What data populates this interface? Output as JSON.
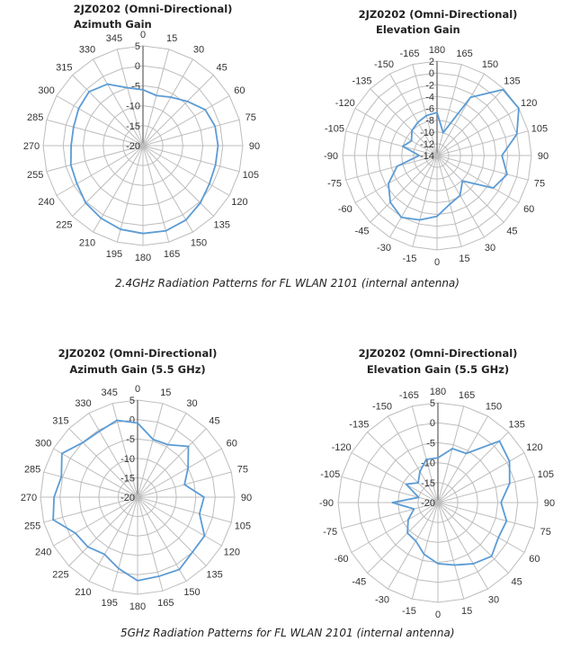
{
  "captions": [
    "2.4GHz Radiation Patterns for FL WLAN 2101 (internal antenna)",
    "5GHz Radiation Patterns for FL WLAN 2101 (internal antenna)"
  ],
  "colors": {
    "series": "#5b9bd5",
    "grid": "#bdbdbd",
    "axis": "#7f7f7f"
  },
  "chart_data": [
    {
      "type": "polar-line",
      "title": "2JZ0202 (Omni-Directional)",
      "subtitle": "Azimuth Gain",
      "orientation": "azimuth",
      "angle_labels": [
        "0",
        "15",
        "30",
        "45",
        "60",
        "75",
        "90",
        "105",
        "120",
        "135",
        "150",
        "165",
        "180",
        "195",
        "210",
        "225",
        "240",
        "255",
        "270",
        "285",
        "300",
        "315",
        "330",
        "345"
      ],
      "radial_range": [
        -20,
        5
      ],
      "radial_ticks": [
        "-20",
        "-15",
        "-10",
        "-5",
        "0",
        "5"
      ],
      "values": [
        -6,
        -7,
        -6,
        -4.3,
        -2,
        -1.3,
        -1.2,
        -1.2,
        -0.8,
        0.3,
        1.5,
        2.1,
        2,
        1.7,
        1,
        0.3,
        -0.9,
        -1.3,
        -2,
        -2,
        -1.4,
        -0.9,
        -2.2,
        -5
      ]
    },
    {
      "type": "polar-line",
      "title": "2JZ0202 (Omni-Directional)",
      "subtitle": "Elevation Gain",
      "orientation": "elevation",
      "angle_labels": [
        "180",
        "165",
        "150",
        "135",
        "120",
        "105",
        "90",
        "75",
        "60",
        "45",
        "30",
        "15",
        "0",
        "-15",
        "-30",
        "-45",
        "-60",
        "-75",
        "-90",
        "-105",
        "-120",
        "-135",
        "-150",
        "-165"
      ],
      "radial_range": [
        -14,
        2
      ],
      "radial_ticks": [
        "-14",
        "-12",
        "-10",
        "-8",
        "-6",
        "-4",
        "-2",
        "0",
        "2"
      ],
      "values": [
        -6.7,
        -10,
        -2.6,
        1.8,
        2,
        0,
        -3,
        -1.7,
        -3,
        -7.9,
        -6.2,
        -5.5,
        -3.7,
        -2.7,
        -1.9,
        -2.8,
        -4.5,
        -7,
        -11,
        -8,
        -9,
        -8,
        -7.5,
        -7
      ]
    },
    {
      "type": "polar-line",
      "title": "2JZ0202 (Omni-Directional)",
      "subtitle": "Azimuth Gain (5.5 GHz)",
      "orientation": "azimuth",
      "angle_labels": [
        "0",
        "15",
        "30",
        "45",
        "60",
        "75",
        "90",
        "105",
        "120",
        "135",
        "150",
        "165",
        "180",
        "195",
        "210",
        "225",
        "240",
        "255",
        "270",
        "285",
        "300",
        "315",
        "330",
        "345"
      ],
      "radial_range": [
        -20,
        5
      ],
      "radial_ticks": [
        "-20",
        "-15",
        "-10",
        "-5",
        "0",
        "5"
      ],
      "values": [
        -0.9,
        -4.6,
        -4.4,
        -1.5,
        -5,
        -7.5,
        -2.9,
        -3.5,
        -0.1,
        0,
        1.5,
        1.1,
        1.5,
        -1,
        -3,
        -1.9,
        -1.5,
        2.5,
        1.5,
        0.3,
        2.5,
        -0.1,
        -0.4,
        0.5
      ]
    },
    {
      "type": "polar-line",
      "title": "2JZ0202 (Omni-Directional)",
      "subtitle": "Elevation Gain (5.5 GHz)",
      "orientation": "elevation",
      "angle_labels": [
        "180",
        "165",
        "150",
        "135",
        "120",
        "105",
        "90",
        "75",
        "60",
        "45",
        "30",
        "15",
        "0",
        "-15",
        "-30",
        "-45",
        "-60",
        "-75",
        "-90",
        "-105",
        "-120",
        "-135",
        "-150",
        "-165"
      ],
      "radial_range": [
        -20,
        5
      ],
      "radial_ticks": [
        "-20",
        "-15",
        "-10",
        "-5",
        "0",
        "5"
      ],
      "values": [
        -8.8,
        -6,
        -5.8,
        1.8,
        0.7,
        -1.4,
        -4.2,
        -2.2,
        -2.5,
        -1,
        -2.3,
        -3.8,
        -4.7,
        -6.6,
        -8.9,
        -9.2,
        -11.4,
        -13.8,
        -8.6,
        -15,
        -10.8,
        -13,
        -11,
        -8.8
      ]
    }
  ]
}
